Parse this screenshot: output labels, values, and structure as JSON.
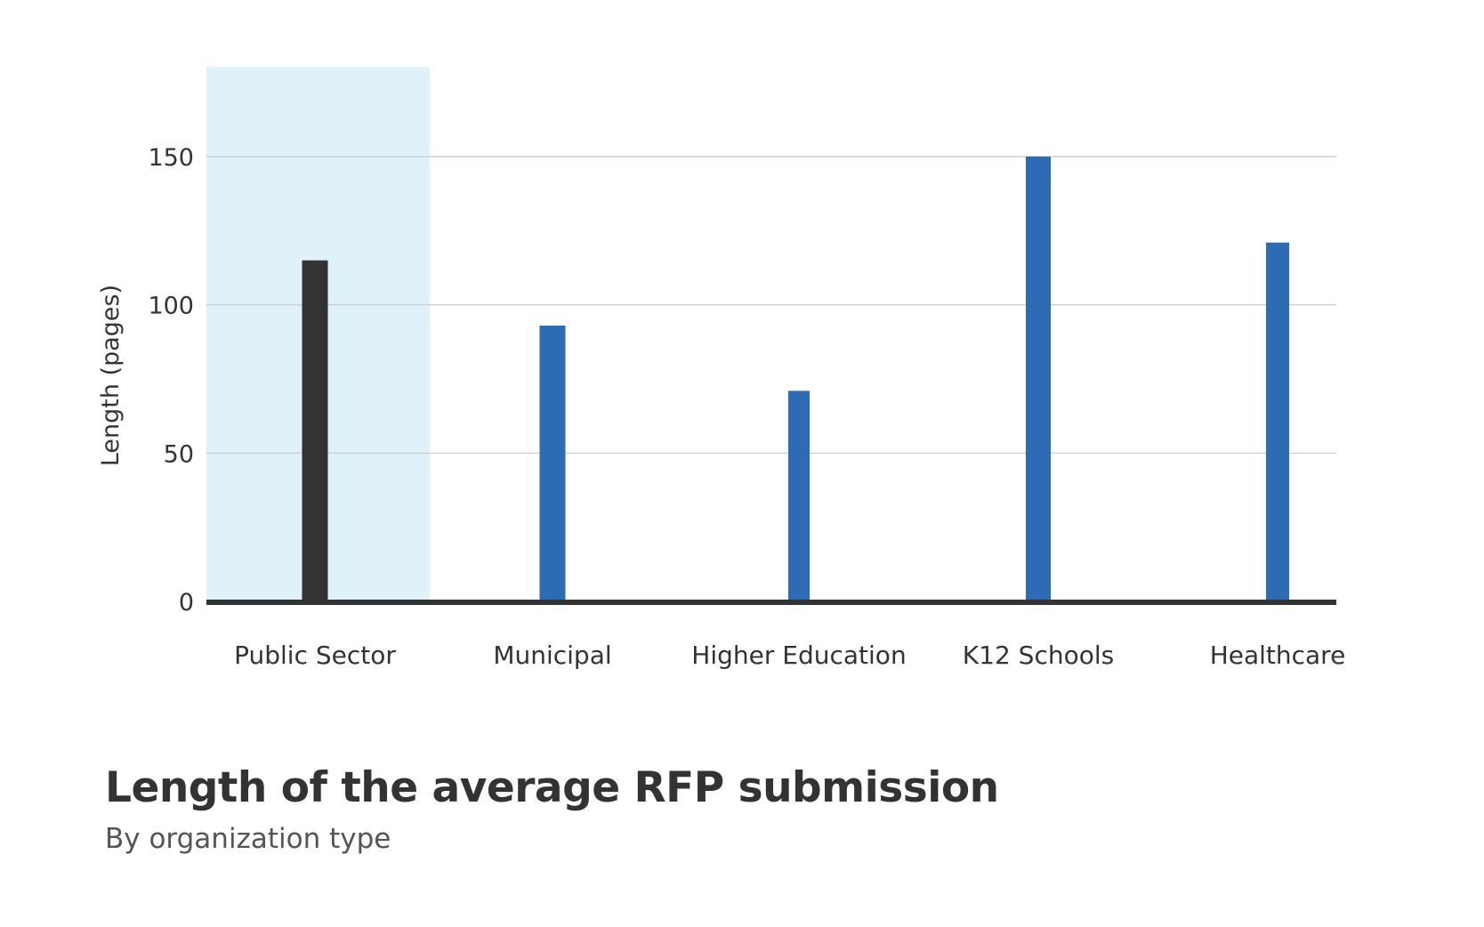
{
  "chart_data": {
    "type": "bar",
    "title": "Length of the average RFP submission",
    "subtitle": "By organization type",
    "xlabel": "",
    "ylabel": "Length (pages)",
    "categories": [
      "Public Sector",
      "Municipal",
      "Higher Education",
      "K12 Schools",
      "Healthcare"
    ],
    "values": [
      115,
      93,
      71,
      150,
      121
    ],
    "ylim": [
      0,
      180
    ],
    "yticks": [
      0,
      50,
      100,
      150
    ],
    "highlighted_category": "Public Sector",
    "grid": true,
    "legend": "none"
  },
  "colors": {
    "bar": "#2b6cb5",
    "highlight_bar": "#333333",
    "highlight_band": "#e0f2f9",
    "gridline": "#c8c8c8",
    "baseline": "#333333"
  }
}
